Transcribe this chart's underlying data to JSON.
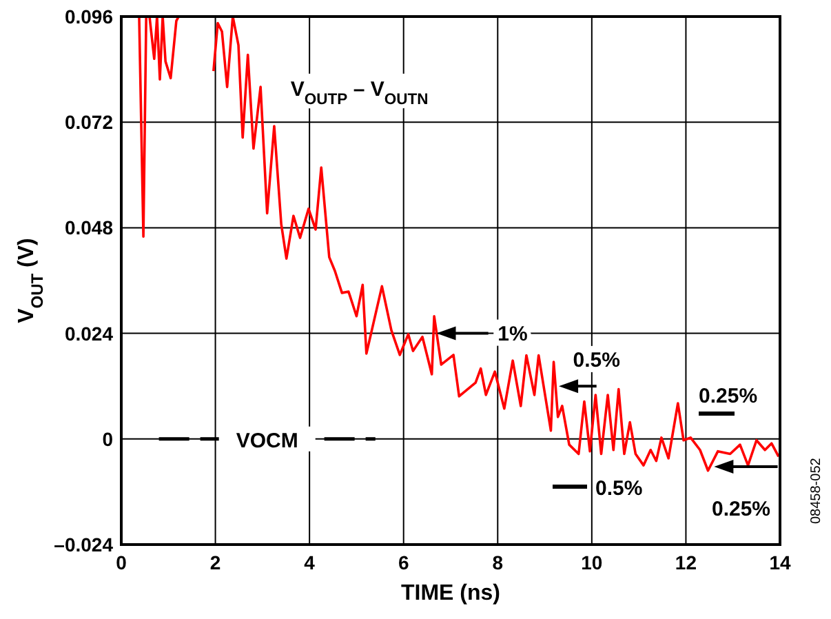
{
  "chart_data": {
    "type": "line",
    "xlabel": "TIME (ns)",
    "ylabel": "V$_{OUT}$ (V)",
    "xlim": [
      0,
      14
    ],
    "xticks": [
      0,
      2,
      4,
      6,
      8,
      10,
      12,
      14
    ],
    "ylim": [
      -0.024,
      0.096
    ],
    "yticks": [
      {
        "value": -0.024,
        "label": "–0.024"
      },
      0,
      0.024,
      0.048,
      0.072,
      0.096
    ],
    "grid": true,
    "series": [
      {
        "name": "V$_{OUTP}$ – V$_{OUTN}$",
        "color": "#ff0000",
        "x": [
          0.38,
          0.47,
          0.53,
          0.6,
          0.7,
          0.76,
          0.82,
          0.88,
          0.94,
          1.05,
          1.17,
          1.22,
          1.9,
          1.96,
          2.05,
          2.14,
          2.25,
          2.37,
          2.49,
          2.58,
          2.69,
          2.81,
          2.96,
          3.1,
          3.25,
          3.4,
          3.51,
          3.66,
          3.8,
          3.98,
          4.13,
          4.25,
          4.42,
          4.54,
          4.69,
          4.83,
          5.0,
          5.13,
          5.21,
          5.54,
          5.74,
          5.92,
          6.1,
          6.2,
          6.4,
          6.6,
          6.65,
          6.8,
          7.06,
          7.18,
          7.53,
          7.64,
          7.75,
          7.94,
          8.14,
          8.32,
          8.49,
          8.61,
          8.78,
          8.87,
          9.13,
          9.19,
          9.28,
          9.37,
          9.52,
          9.72,
          9.84,
          9.96,
          10.08,
          10.2,
          10.34,
          10.46,
          10.57,
          10.69,
          10.81,
          10.93,
          11.1,
          11.25,
          11.37,
          11.48,
          11.63,
          11.83,
          11.95,
          12.1,
          12.3,
          12.47,
          12.68,
          12.94,
          13.15,
          13.32,
          13.5,
          13.68,
          13.82,
          13.97
        ],
        "values": [
          0.096,
          0.046,
          0.096,
          0.096,
          0.0864,
          0.096,
          0.0817,
          0.096,
          0.0858,
          0.082,
          0.095,
          0.096,
          null,
          0.0836,
          0.0945,
          0.0926,
          0.08,
          0.096,
          0.0895,
          0.0685,
          0.0873,
          0.066,
          0.08,
          0.0513,
          0.0711,
          0.0488,
          0.041,
          0.0507,
          0.0457,
          0.0523,
          0.0476,
          0.0617,
          0.0413,
          0.0382,
          0.0332,
          0.0335,
          0.0279,
          0.035,
          0.0194,
          0.0347,
          0.0247,
          0.0191,
          0.0238,
          0.02,
          0.0232,
          0.0147,
          0.0279,
          0.0169,
          0.0191,
          0.0097,
          0.0128,
          0.016,
          0.01,
          0.0153,
          0.0069,
          0.0178,
          0.0075,
          0.019,
          0.01,
          0.019,
          0.0019,
          0.0175,
          0.005,
          0.0075,
          -0.0013,
          -0.0034,
          0.0085,
          -0.0028,
          0.01,
          -0.0034,
          0.01,
          -0.0025,
          0.0113,
          -0.0034,
          0.0038,
          -0.0034,
          -0.006,
          -0.0025,
          -0.005,
          0.0003,
          -0.0044,
          0.0081,
          -0.0003,
          0.0003,
          -0.0025,
          -0.0072,
          -0.0028,
          -0.0034,
          -0.0013,
          -0.006,
          -0.0003,
          -0.0025,
          -0.001,
          -0.004
        ]
      },
      {
        "name": "VOCM",
        "color": "#000000",
        "line_style": "dashed",
        "x": [
          0.8,
          5.4
        ],
        "values": [
          0,
          0
        ]
      }
    ],
    "annotations": [
      {
        "text": "1%",
        "x": 6.7,
        "y": 0.024
      },
      {
        "text": "0.5%",
        "x": 9.3,
        "y": 0.012
      },
      "0.5%",
      "0.25%",
      {
        "text": "0.25%",
        "x": 12.6,
        "y": -0.0063
      },
      "08458-052"
    ]
  }
}
